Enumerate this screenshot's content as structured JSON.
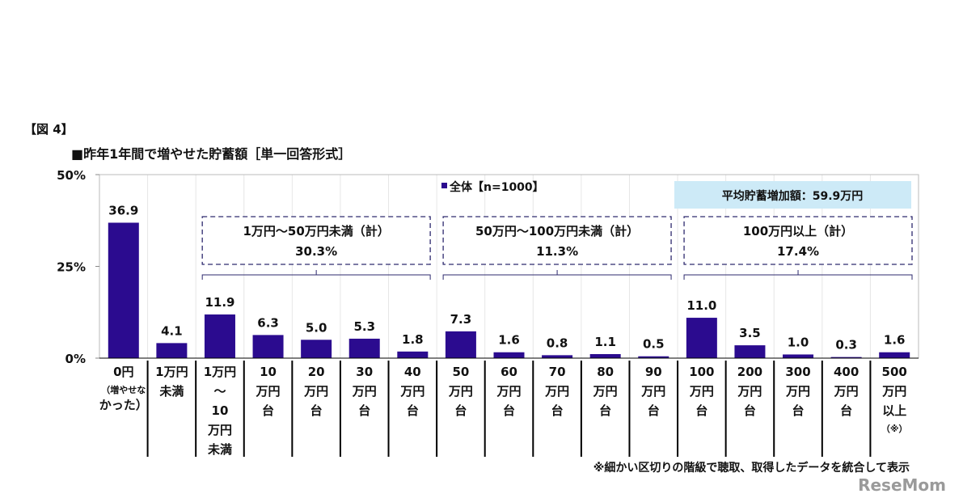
{
  "figure_label": "【図 4】",
  "chart_data": {
    "type": "bar",
    "title": "■昨年1年間で増やせた貯蓄額［単一回答形式］",
    "categories": [
      [
        "0円",
        "（増やせな",
        "かった）"
      ],
      [
        "1万円",
        "未満"
      ],
      [
        "1万円",
        "～",
        "10",
        "万円",
        "未満"
      ],
      [
        "10",
        "万円",
        "台"
      ],
      [
        "20",
        "万円",
        "台"
      ],
      [
        "30",
        "万円",
        "台"
      ],
      [
        "40",
        "万円",
        "台"
      ],
      [
        "50",
        "万円",
        "台"
      ],
      [
        "60",
        "万円",
        "台"
      ],
      [
        "70",
        "万円",
        "台"
      ],
      [
        "80",
        "万円",
        "台"
      ],
      [
        "90",
        "万円",
        "台"
      ],
      [
        "100",
        "万円",
        "台"
      ],
      [
        "200",
        "万円",
        "台"
      ],
      [
        "300",
        "万円",
        "台"
      ],
      [
        "400",
        "万円",
        "台"
      ],
      [
        "500",
        "万円",
        "以上",
        "（※）"
      ]
    ],
    "series": [
      {
        "name": "全体【n=1000】",
        "values": [
          36.9,
          4.1,
          11.9,
          6.3,
          5.0,
          5.3,
          1.8,
          7.3,
          1.6,
          0.8,
          1.1,
          0.5,
          11.0,
          3.5,
          1.0,
          0.3,
          1.6
        ]
      }
    ],
    "value_labels": [
      "36.9",
      "4.1",
      "11.9",
      "6.3",
      "5.0",
      "5.3",
      "1.8",
      "7.3",
      "1.6",
      "0.8",
      "1.1",
      "0.5",
      "11.0",
      "3.5",
      "1.0",
      "0.3",
      "1.6"
    ],
    "ylim": [
      0,
      50
    ],
    "yticks": [
      "0%",
      "25%",
      "50%"
    ],
    "legend": "全体【n=1000】",
    "legend_position": "top",
    "groups": [
      {
        "label": "1万円～50万円未満（計）",
        "value": "30.3%",
        "from": 2,
        "to": 6
      },
      {
        "label": "50万円～100万円未満（計）",
        "value": "11.3%",
        "from": 7,
        "to": 11
      },
      {
        "label": "100万円以上（計）",
        "value": "17.4%",
        "from": 12,
        "to": 16
      }
    ],
    "average_note": "平均貯蓄増加額：59.9万円",
    "footnote": "※細かい区切りの階級で聴取、取得したデータを統合して表示"
  },
  "colors": {
    "bar": "#2b0b8f",
    "avg_bg": "#cdeaf7",
    "group_border": "#2e2a6e"
  },
  "watermark": "ReseMom"
}
